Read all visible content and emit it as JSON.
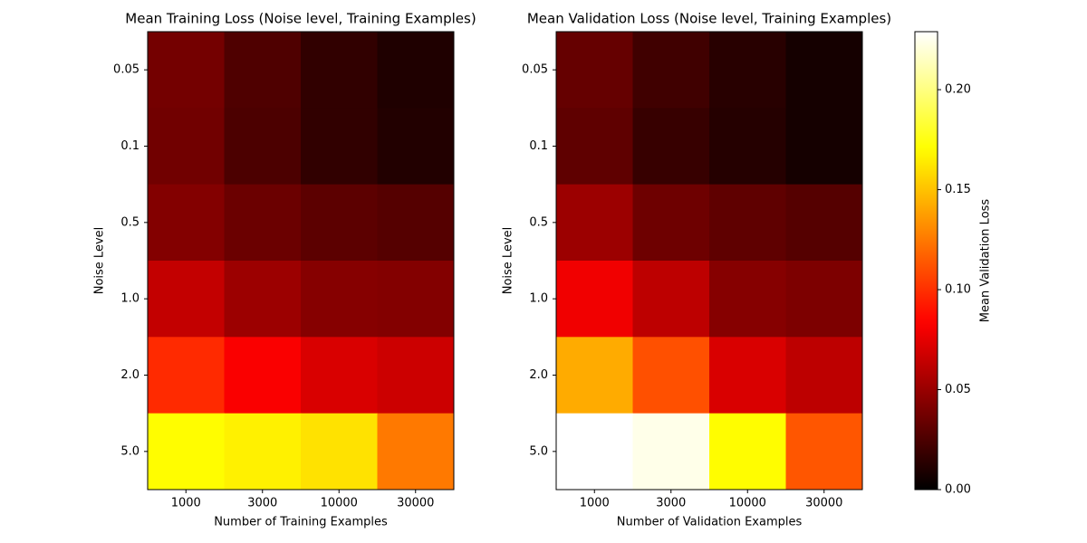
{
  "chart_data": [
    {
      "type": "heatmap",
      "title": "Mean Training Loss (Noise level, Training Examples)",
      "x_label": "Number of Training Examples",
      "y_label": "Noise Level",
      "categories": [
        "1000",
        "3000",
        "10000",
        "30000"
      ],
      "rows": [
        "0.05",
        "0.1",
        "0.5",
        "1.0",
        "2.0",
        "5.0"
      ],
      "values": [
        [
          0.038,
          0.026,
          0.016,
          0.01
        ],
        [
          0.037,
          0.025,
          0.016,
          0.011
        ],
        [
          0.043,
          0.035,
          0.03,
          0.028
        ],
        [
          0.064,
          0.051,
          0.044,
          0.043
        ],
        [
          0.098,
          0.082,
          0.071,
          0.067
        ],
        [
          0.17,
          0.166,
          0.161,
          0.125
        ]
      ],
      "colormap": "hot",
      "clim": [
        0,
        0.229
      ]
    },
    {
      "type": "heatmap",
      "title": "Mean Validation Loss (Noise level, Training Examples)",
      "x_label": "Number of Validation Examples",
      "y_label": "Noise Level",
      "categories": [
        "1000",
        "3000",
        "10000",
        "30000"
      ],
      "rows": [
        "0.05",
        "0.1",
        "0.5",
        "1.0",
        "2.0",
        "5.0"
      ],
      "values": [
        [
          0.033,
          0.021,
          0.013,
          0.007
        ],
        [
          0.031,
          0.018,
          0.012,
          0.007
        ],
        [
          0.051,
          0.036,
          0.031,
          0.028
        ],
        [
          0.079,
          0.062,
          0.044,
          0.041
        ],
        [
          0.142,
          0.111,
          0.071,
          0.062
        ],
        [
          0.229,
          0.224,
          0.17,
          0.113
        ]
      ],
      "colormap": "hot",
      "clim": [
        0,
        0.229
      ]
    },
    {
      "type": "colorbar",
      "label": "Mean Validation Loss",
      "colormap": "hot",
      "ylim": [
        0,
        0.229
      ],
      "yticks": [
        {
          "value": 0,
          "label": "0.00"
        },
        0.05,
        {
          "value": 0.1,
          "label": "0.10"
        },
        0.15,
        {
          "value": 0.2,
          "label": "0.20"
        }
      ]
    }
  ]
}
